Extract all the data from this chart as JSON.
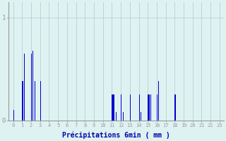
{
  "xlabel": "Précipitations 6min ( mm )",
  "bg_color": "#dff2f2",
  "bar_color": "#0000cc",
  "grid_color": "#aacccc",
  "axis_color": "#999999",
  "text_color": "#0000aa",
  "xlim": [
    -0.5,
    23.5
  ],
  "ylim": [
    0,
    1.15
  ],
  "yticks": [
    0,
    1
  ],
  "xticks": [
    0,
    1,
    2,
    3,
    4,
    5,
    6,
    7,
    8,
    9,
    10,
    11,
    12,
    13,
    14,
    15,
    16,
    17,
    18,
    19,
    20,
    21,
    22,
    23
  ],
  "bars": [
    [
      0.05,
      0.1
    ],
    [
      1.05,
      0.38
    ],
    [
      1.25,
      0.65
    ],
    [
      2.05,
      0.65
    ],
    [
      2.2,
      0.68
    ],
    [
      2.45,
      0.38
    ],
    [
      3.05,
      0.38
    ],
    [
      11.05,
      0.25
    ],
    [
      11.2,
      0.25
    ],
    [
      11.45,
      0.08
    ],
    [
      12.05,
      0.25
    ],
    [
      12.25,
      0.08
    ],
    [
      13.05,
      0.25
    ],
    [
      14.05,
      0.25
    ],
    [
      14.25,
      0.08
    ],
    [
      15.05,
      0.25
    ],
    [
      15.2,
      0.25
    ],
    [
      15.35,
      0.25
    ],
    [
      16.05,
      0.25
    ],
    [
      16.2,
      0.38
    ],
    [
      18.05,
      0.25
    ]
  ],
  "bar_width": 0.1
}
